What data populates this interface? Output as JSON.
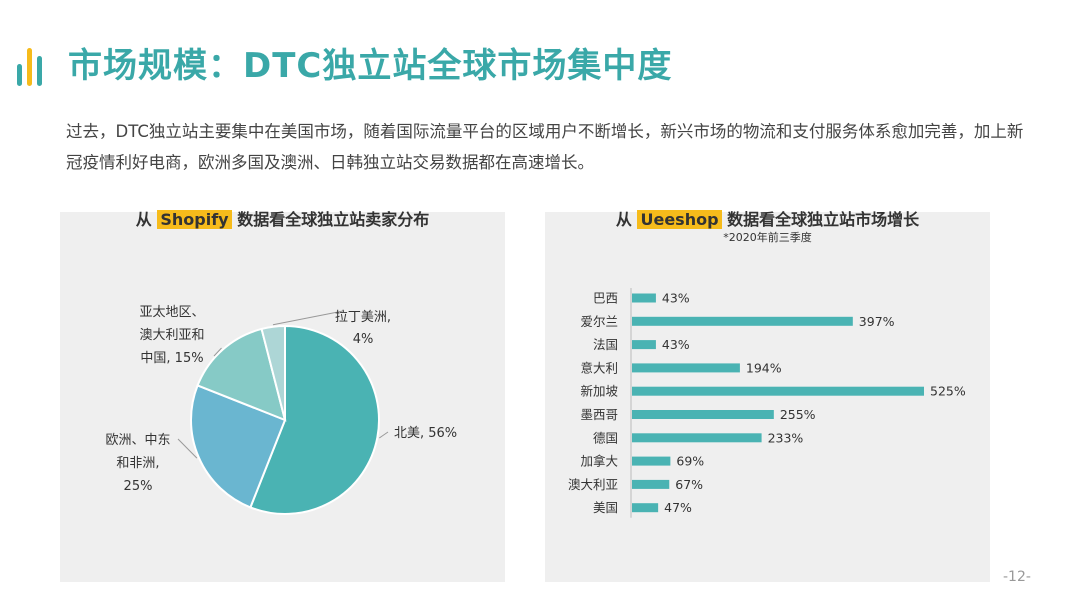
{
  "page": {
    "title": "市场规模：DTC独立站全球市场集中度",
    "intro": "过去，DTC独立站主要集中在美国市场，随着国际流量平台的区域用户不断增长，新兴市场的物流和支付服务体系愈加完善，加上新冠疫情利好电商，欧洲多国及澳洲、日韩独立站交易数据都在高速增长。",
    "page_number": "-12-",
    "accent_color": "#3aa8a8",
    "highlight_color": "#f6bb1b"
  },
  "chart_data": [
    {
      "type": "pie",
      "title_prefix": "从",
      "title_highlight": "Shopify",
      "title_suffix": "数据看全球独立站卖家分布",
      "slices": [
        {
          "label_lines": [
            "北美, 56%"
          ],
          "value": 56,
          "color": "#4ab3b3"
        },
        {
          "label_lines": [
            "欧洲、中东",
            "和非洲,",
            "25%"
          ],
          "value": 25,
          "color": "#6ab6d0"
        },
        {
          "label_lines": [
            "亚太地区、",
            "澳大利亚和",
            "中国, 15%"
          ],
          "value": 15,
          "color": "#86cac6"
        },
        {
          "label_lines": [
            "拉丁美洲,",
            "4%"
          ],
          "value": 4,
          "color": "#add6d6"
        }
      ]
    },
    {
      "type": "bar",
      "orientation": "horizontal",
      "title_prefix": "从",
      "title_highlight": "Ueeshop",
      "title_suffix": "数据看全球独立站市场增长",
      "subtitle": "*2020年前三季度",
      "bar_color": "#4ab3b3",
      "categories": [
        "巴西",
        "爱尔兰",
        "法国",
        "意大利",
        "新加坡",
        "墨西哥",
        "德国",
        "加拿大",
        "澳大利亚",
        "美国"
      ],
      "values": [
        43,
        397,
        43,
        194,
        525,
        255,
        233,
        69,
        67,
        47
      ],
      "value_labels": [
        "43%",
        "397%",
        "43%",
        "194%",
        "525%",
        "255%",
        "233%",
        "69%",
        "67%",
        "47%"
      ]
    }
  ]
}
